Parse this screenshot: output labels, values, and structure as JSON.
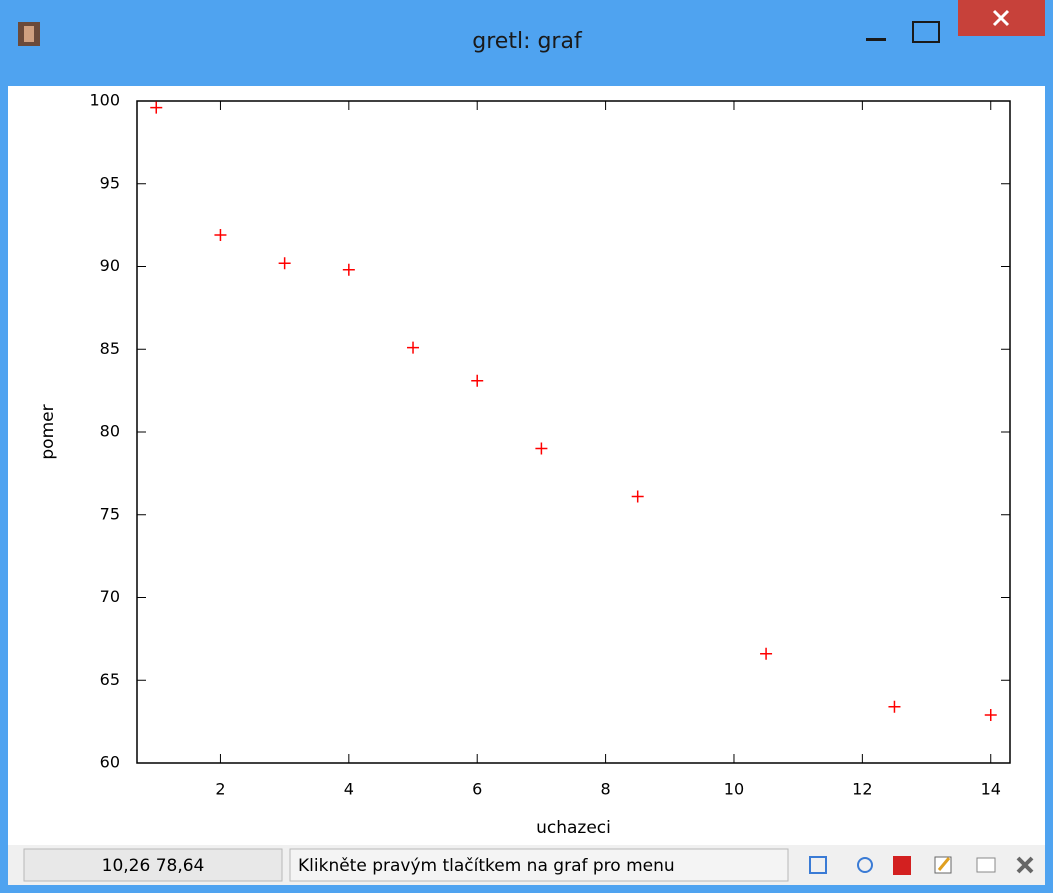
{
  "window": {
    "title": "gretl: graf"
  },
  "chart_data": {
    "type": "scatter",
    "x_label": "uchazeci",
    "y_label": "pomer",
    "x": [
      1,
      2,
      3,
      4,
      5,
      6,
      7,
      8.5,
      10.5,
      12.5,
      14
    ],
    "series": [
      {
        "color": "#ff0000",
        "values": [
          99.6,
          91.9,
          90.2,
          89.8,
          85.1,
          83.1,
          79.0,
          76.1,
          66.6,
          63.4,
          62.9
        ]
      }
    ],
    "xlim": [
      0.7,
      14.3
    ],
    "xticks": [
      2,
      4,
      6,
      8,
      10,
      12,
      14
    ],
    "ylim": [
      60,
      100
    ],
    "yticks": [
      60,
      65,
      70,
      75,
      80,
      85,
      90,
      95,
      100
    ]
  },
  "status": {
    "coordinates": "10,26 78,64",
    "hint": "Klikněte pravým tlačítkem na graf pro menu"
  }
}
